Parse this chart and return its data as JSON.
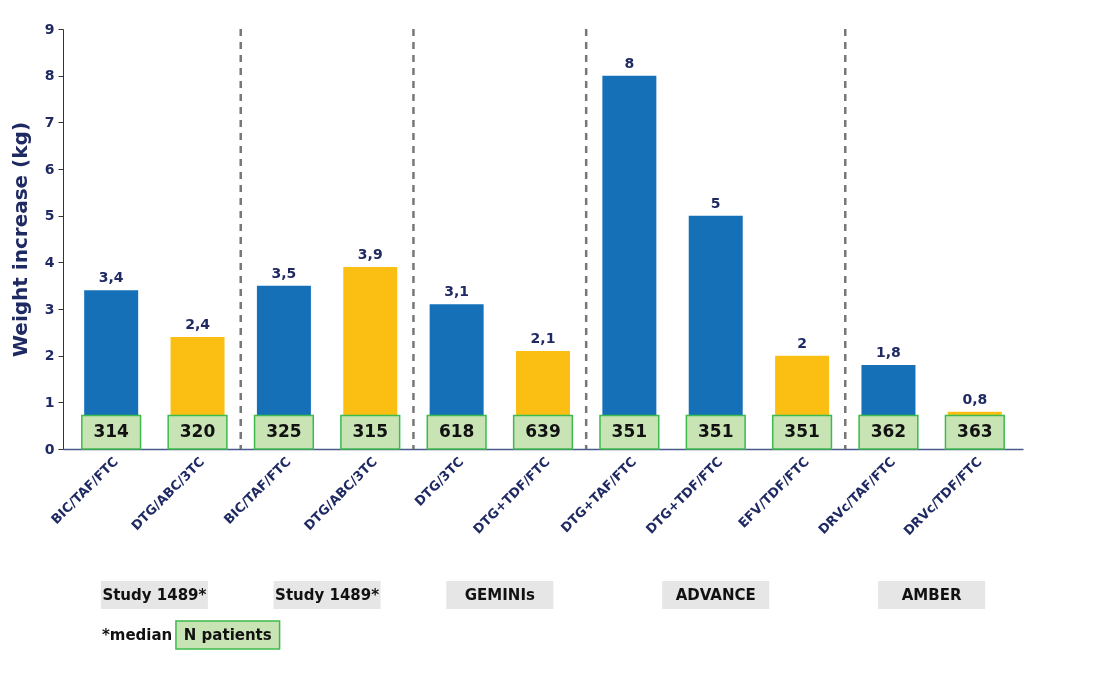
{
  "chart_data": {
    "type": "bar",
    "ylabel": "Weight increase (kg)",
    "categories": [
      "BIC/TAF/FTC",
      "DTG/ABC/3TC",
      "BIC/TAF/FTC",
      "DTG/ABC/3TC",
      "DTG/3TC",
      "DTG+TDF/FTC",
      "DTG+TAF/FTC",
      "DTG+TDF/FTC",
      "EFV/TDF/FTC",
      "DRVc/TAF/FTC",
      "DRVc/TDF/FTC"
    ],
    "values": [
      3.4,
      2.4,
      3.5,
      3.9,
      3.1,
      2.1,
      8,
      5,
      2,
      1.8,
      0.8
    ],
    "colors": [
      "#1570b8",
      "#fbbf14",
      "#1570b8",
      "#fbbf14",
      "#1570b8",
      "#fbbf14",
      "#1570b8",
      "#1570b8",
      "#fbbf14",
      "#1570b8",
      "#fbbf14"
    ],
    "value_labels": [
      "3,4",
      "2,4",
      "3,5",
      "3,9",
      "3,1",
      "2,1",
      "8",
      "5",
      "2",
      "1,8",
      "0,8"
    ],
    "ylim": [
      0,
      9
    ],
    "yticks": [
      0,
      1,
      2,
      3,
      4,
      5,
      6,
      7,
      8,
      9
    ],
    "grid": false,
    "annotations": [
      "314",
      "320",
      "325",
      "315",
      "618",
      "639",
      "351",
      "351",
      "351",
      "362",
      "363",
      "Study 1489*",
      "Study 1489*",
      "GEMINIs",
      "ADVANCE",
      "AMBER",
      "*median",
      "N patients"
    ]
  }
}
